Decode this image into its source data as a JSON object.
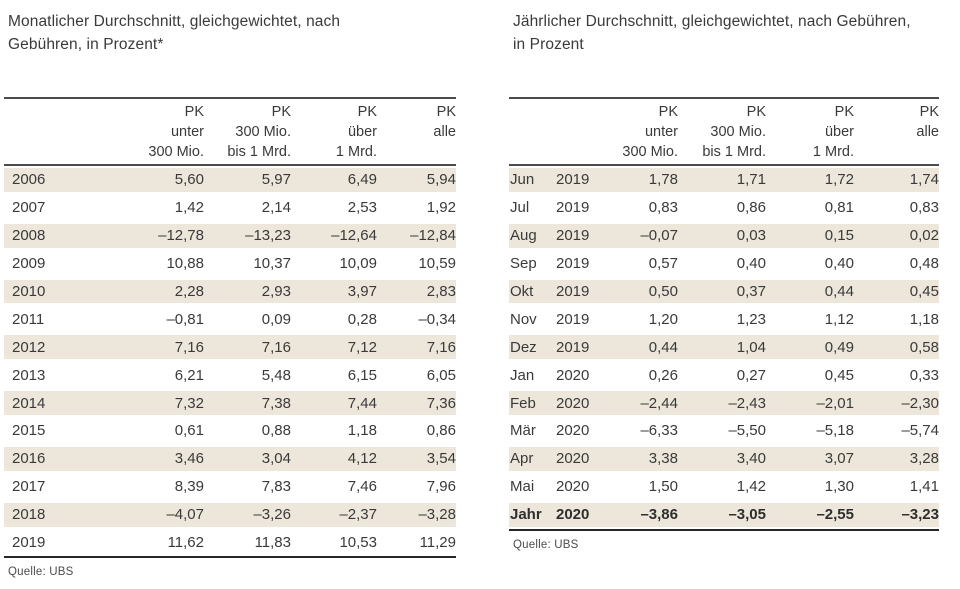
{
  "page": {
    "background_color": "#ffffff",
    "stripe_color": "#ece7da",
    "text_color": "#3a3a3a"
  },
  "left_table": {
    "title_lines": [
      "Monatlicher Durchschnitt, gleichgewichtet, nach",
      "Gebühren, in Prozent*"
    ],
    "col_headers": [
      [
        "PK",
        "unter",
        "300 Mio."
      ],
      [
        "PK",
        "300 Mio.",
        "bis 1 Mrd."
      ],
      [
        "PK",
        "über",
        "1 Mrd."
      ],
      [
        "PK",
        "alle",
        ""
      ]
    ],
    "rows": [
      {
        "label": "2006",
        "values": [
          "5,60",
          "5,97",
          "6,49",
          "5,94"
        ]
      },
      {
        "label": "2007",
        "values": [
          "1,42",
          "2,14",
          "2,53",
          "1,92"
        ]
      },
      {
        "label": "2008",
        "values": [
          "–12,78",
          "–13,23",
          "–12,64",
          "–12,84"
        ]
      },
      {
        "label": "2009",
        "values": [
          "10,88",
          "10,37",
          "10,09",
          "10,59"
        ]
      },
      {
        "label": "2010",
        "values": [
          "2,28",
          "2,93",
          "3,97",
          "2,83"
        ]
      },
      {
        "label": "2011",
        "values": [
          "–0,81",
          "0,09",
          "0,28",
          "–0,34"
        ]
      },
      {
        "label": "2012",
        "values": [
          "7,16",
          "7,16",
          "7,12",
          "7,16"
        ]
      },
      {
        "label": "2013",
        "values": [
          "6,21",
          "5,48",
          "6,15",
          "6,05"
        ]
      },
      {
        "label": "2014",
        "values": [
          "7,32",
          "7,38",
          "7,44",
          "7,36"
        ]
      },
      {
        "label": "2015",
        "values": [
          "0,61",
          "0,88",
          "1,18",
          "0,86"
        ]
      },
      {
        "label": "2016",
        "values": [
          "3,46",
          "3,04",
          "4,12",
          "3,54"
        ]
      },
      {
        "label": "2017",
        "values": [
          "8,39",
          "7,83",
          "7,46",
          "7,96"
        ]
      },
      {
        "label": "2018",
        "values": [
          "–4,07",
          "–3,26",
          "–2,37",
          "–3,28"
        ]
      },
      {
        "label": "2019",
        "values": [
          "11,62",
          "11,83",
          "10,53",
          "11,29"
        ]
      }
    ],
    "source": "Quelle: UBS"
  },
  "right_table": {
    "title_lines": [
      "Jährlicher Durchschnitt, gleichgewichtet, nach Gebühren,",
      "in Prozent"
    ],
    "col_headers": [
      [
        "PK",
        "unter",
        "300 Mio."
      ],
      [
        "PK",
        "300 Mio.",
        "bis 1 Mrd."
      ],
      [
        "PK",
        "über",
        "1 Mrd."
      ],
      [
        "PK",
        "alle",
        ""
      ]
    ],
    "rows": [
      {
        "month": "Jun",
        "year": "2019",
        "values": [
          "1,78",
          "1,71",
          "1,72",
          "1,74"
        ]
      },
      {
        "month": "Jul",
        "year": "2019",
        "values": [
          "0,83",
          "0,86",
          "0,81",
          "0,83"
        ]
      },
      {
        "month": "Aug",
        "year": "2019",
        "values": [
          "–0,07",
          "0,03",
          "0,15",
          "0,02"
        ]
      },
      {
        "month": "Sep",
        "year": "2019",
        "values": [
          "0,57",
          "0,40",
          "0,40",
          "0,48"
        ]
      },
      {
        "month": "Okt",
        "year": "2019",
        "values": [
          "0,50",
          "0,37",
          "0,44",
          "0,45"
        ]
      },
      {
        "month": "Nov",
        "year": "2019",
        "values": [
          "1,20",
          "1,23",
          "1,12",
          "1,18"
        ]
      },
      {
        "month": "Dez",
        "year": "2019",
        "values": [
          "0,44",
          "1,04",
          "0,49",
          "0,58"
        ]
      },
      {
        "month": "Jan",
        "year": "2020",
        "values": [
          "0,26",
          "0,27",
          "0,45",
          "0,33"
        ]
      },
      {
        "month": "Feb",
        "year": "2020",
        "values": [
          "–2,44",
          "–2,43",
          "–2,01",
          "–2,30"
        ]
      },
      {
        "month": "Mär",
        "year": "2020",
        "values": [
          "–6,33",
          "–5,50",
          "–5,18",
          "–5,74"
        ]
      },
      {
        "month": "Apr",
        "year": "2020",
        "values": [
          "3,38",
          "3,40",
          "3,07",
          "3,28"
        ]
      },
      {
        "month": "Mai",
        "year": "2020",
        "values": [
          "1,50",
          "1,42",
          "1,30",
          "1,41"
        ]
      },
      {
        "month": "Jahr",
        "year": "2020",
        "values": [
          "–3,86",
          "–3,05",
          "–2,55",
          "–3,23"
        ],
        "bold": true
      }
    ],
    "source": "Quelle: UBS"
  }
}
